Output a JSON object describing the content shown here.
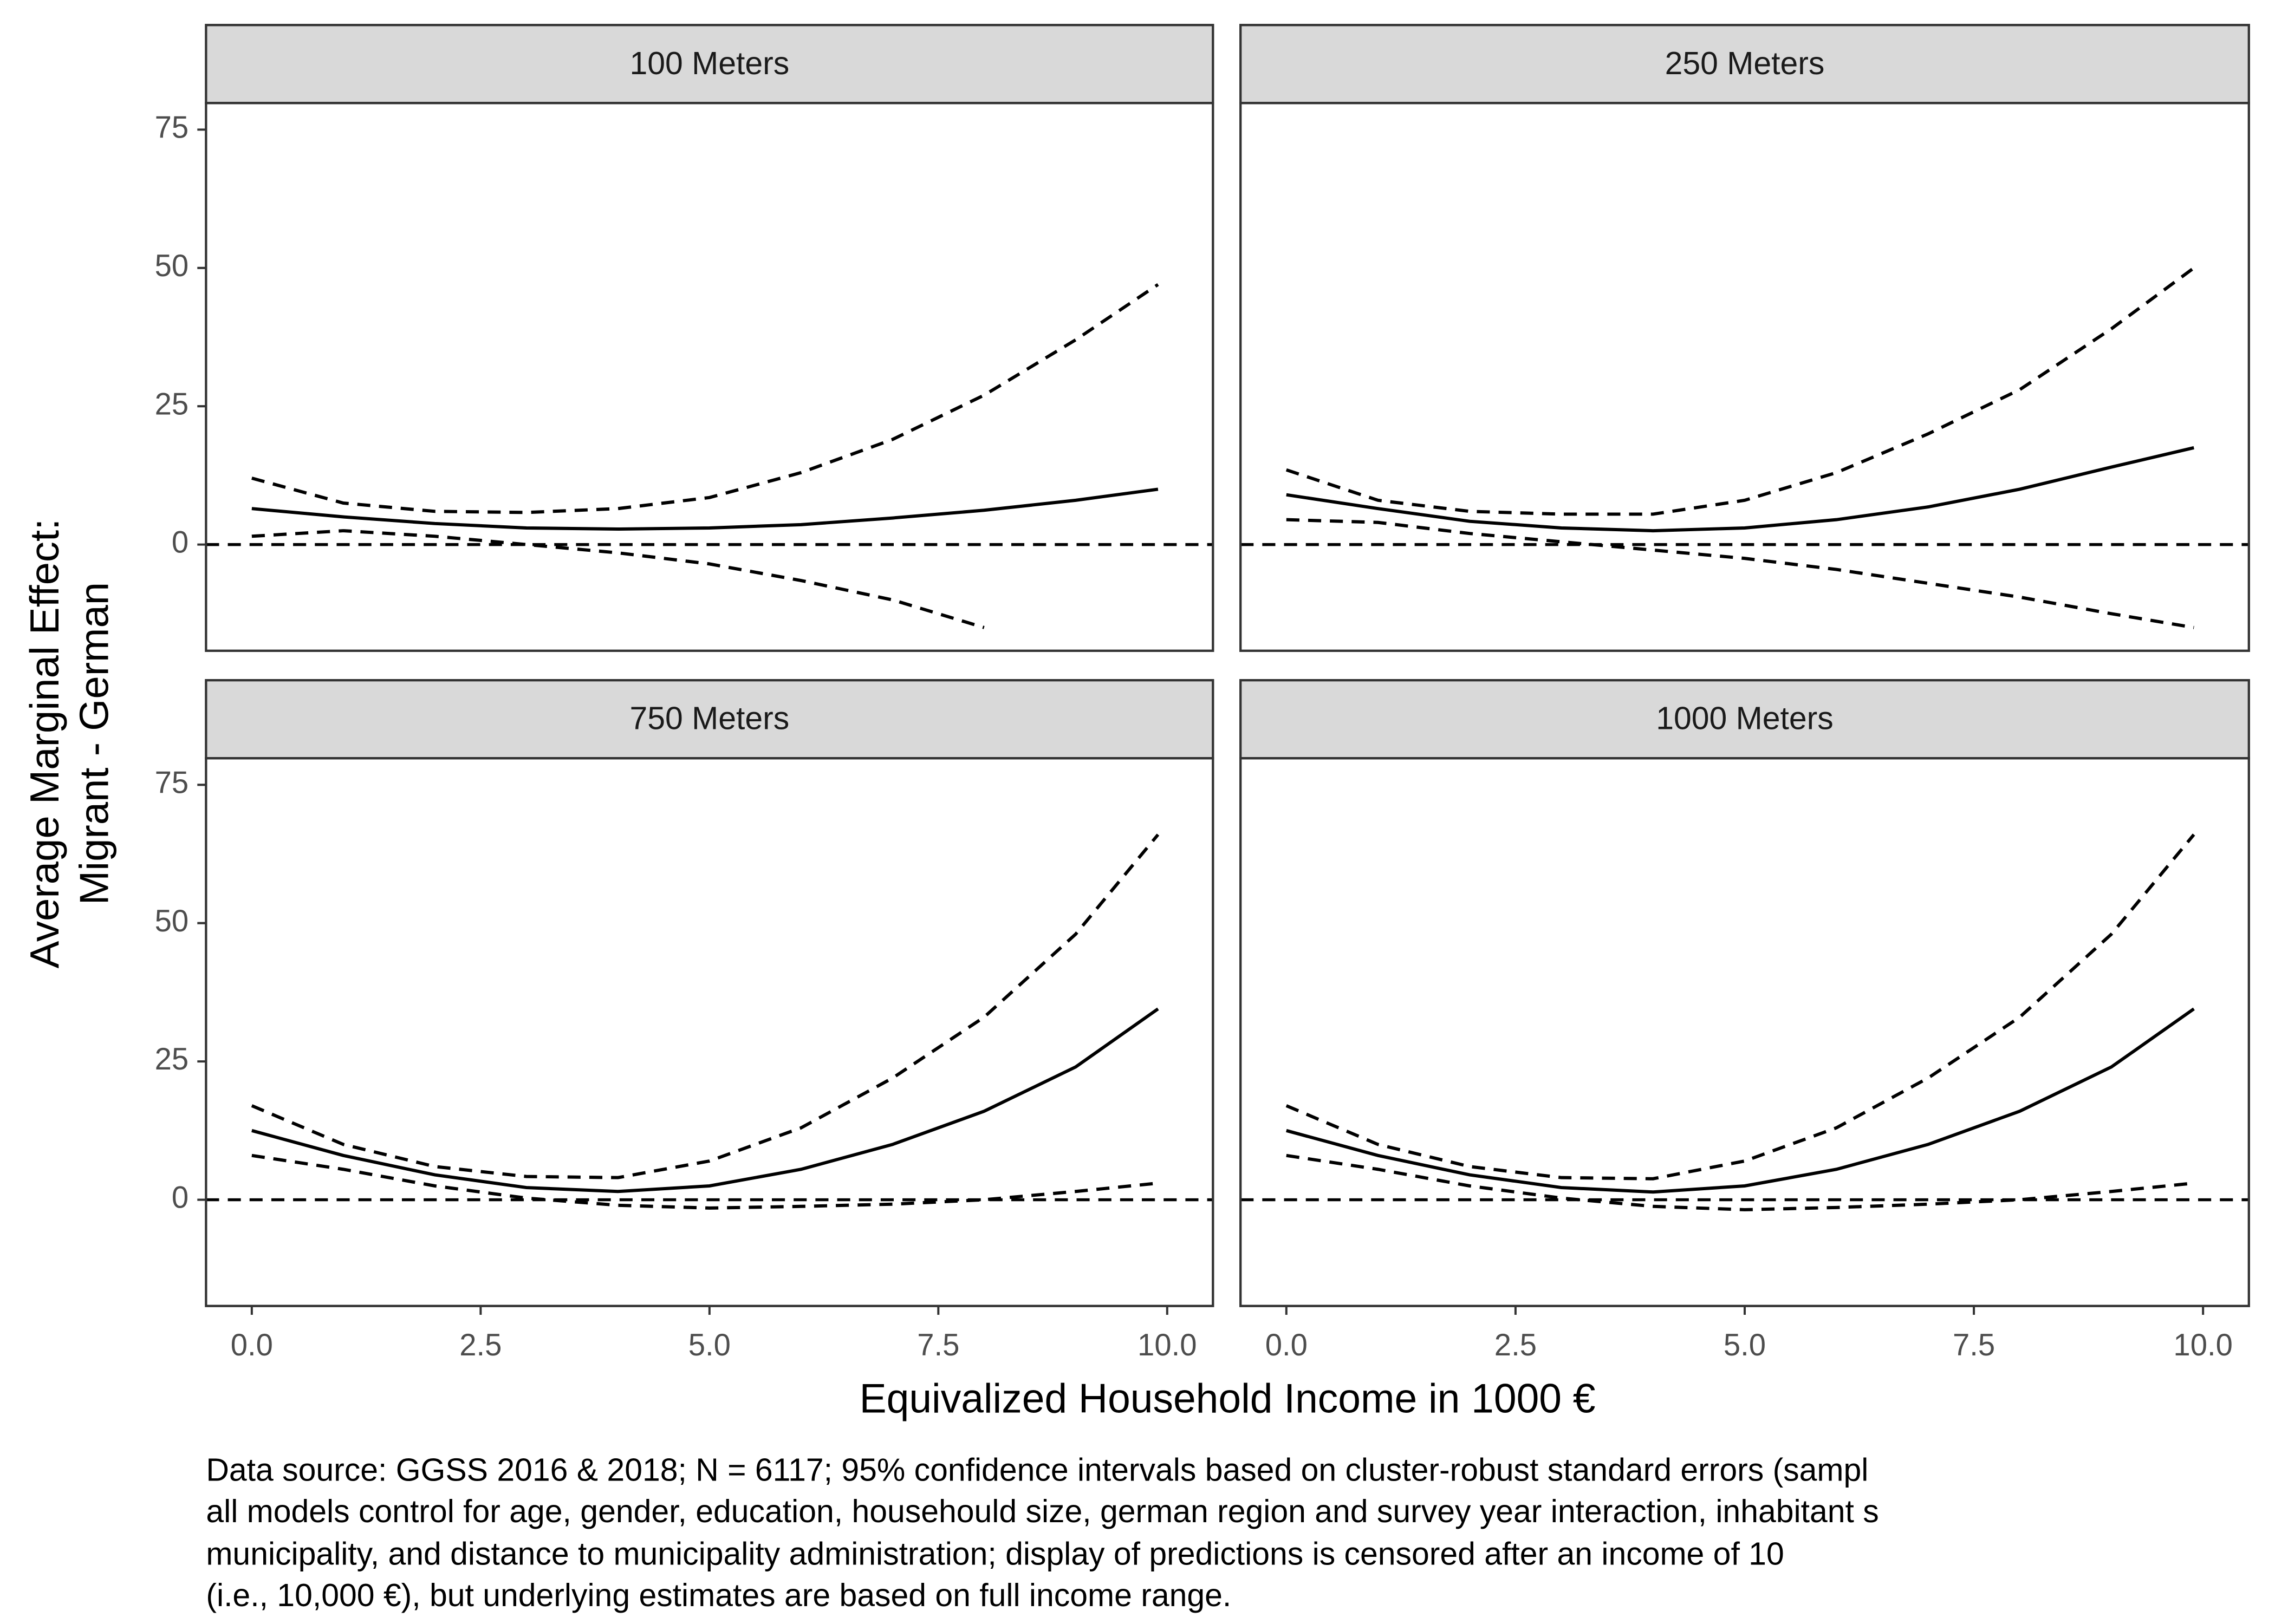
{
  "chart_data": [
    {
      "type": "line",
      "title": "100 Meters",
      "x": [
        0,
        1,
        2,
        3,
        4,
        5,
        6,
        7,
        8,
        9,
        9.9
      ],
      "series": [
        {
          "color": "#000000",
          "dashed": false,
          "values": [
            6.5,
            5,
            3.8,
            3,
            2.8,
            3,
            3.6,
            4.8,
            6.2,
            8,
            10
          ]
        },
        {
          "color": "#000000",
          "dashed": true,
          "values": [
            12,
            7.5,
            6,
            5.8,
            6.5,
            8.5,
            13,
            19,
            27,
            37,
            47
          ]
        },
        {
          "color": "#000000",
          "dashed": true,
          "values": [
            1.5,
            2.5,
            1.5,
            0,
            -1.5,
            -3.5,
            -6.5,
            -10,
            -15,
            null,
            null
          ]
        }
      ],
      "hline": 0,
      "xlim": [
        -0.5,
        10.5
      ],
      "ylim": [
        -19.2,
        79.8
      ],
      "yticks": [
        0,
        25,
        50,
        75
      ],
      "grid": false
    },
    {
      "type": "line",
      "title": "250 Meters",
      "x": [
        0,
        1,
        2,
        3,
        4,
        5,
        6,
        7,
        8,
        9,
        9.9
      ],
      "series": [
        {
          "color": "#000000",
          "dashed": false,
          "values": [
            9,
            6.5,
            4.2,
            3,
            2.5,
            3,
            4.5,
            6.8,
            10,
            14,
            17.5
          ]
        },
        {
          "color": "#000000",
          "dashed": true,
          "values": [
            13.5,
            8,
            6,
            5.5,
            5.5,
            8,
            13,
            20,
            28,
            39,
            50
          ]
        },
        {
          "color": "#000000",
          "dashed": true,
          "values": [
            4.5,
            4,
            2,
            0.5,
            -1,
            -2.5,
            -4.5,
            -7,
            -9.5,
            -12.5,
            -15
          ]
        }
      ],
      "hline": 0,
      "xlim": [
        -0.5,
        10.5
      ],
      "ylim": [
        -19.2,
        79.8
      ],
      "grid": false
    },
    {
      "type": "line",
      "title": "750 Meters",
      "x": [
        0,
        1,
        2,
        3,
        4,
        5,
        6,
        7,
        8,
        9,
        9.9
      ],
      "series": [
        {
          "color": "#000000",
          "dashed": false,
          "values": [
            12.5,
            8,
            4.5,
            2.2,
            1.5,
            2.5,
            5.5,
            10,
            16,
            24,
            34.5
          ]
        },
        {
          "color": "#000000",
          "dashed": true,
          "values": [
            17,
            10,
            6,
            4.2,
            4,
            7,
            13,
            22,
            33,
            48,
            66
          ]
        },
        {
          "color": "#000000",
          "dashed": true,
          "values": [
            8,
            5.5,
            2.5,
            0.3,
            -1,
            -1.5,
            -1.2,
            -0.8,
            0,
            1.5,
            3
          ]
        }
      ],
      "hline": 0,
      "xlim": [
        -0.5,
        10.5
      ],
      "ylim": [
        -19.2,
        79.8
      ],
      "xticks": [
        {
          "value": 0,
          "label": "0.0"
        },
        2.5,
        {
          "value": 5,
          "label": "5.0"
        },
        7.5,
        {
          "value": 10,
          "label": "10.0"
        }
      ],
      "yticks": [
        0,
        25,
        50,
        75
      ],
      "grid": false
    },
    {
      "type": "line",
      "title": "1000 Meters",
      "x": [
        0,
        1,
        2,
        3,
        4,
        5,
        6,
        7,
        8,
        9,
        9.9
      ],
      "series": [
        {
          "color": "#000000",
          "dashed": false,
          "values": [
            12.5,
            8,
            4.5,
            2.2,
            1.4,
            2.5,
            5.5,
            10,
            16,
            24,
            34.5
          ]
        },
        {
          "color": "#000000",
          "dashed": true,
          "values": [
            17,
            10,
            6,
            4,
            3.8,
            7,
            13,
            22,
            33,
            48,
            66
          ]
        },
        {
          "color": "#000000",
          "dashed": true,
          "values": [
            8,
            5.5,
            2.5,
            0.3,
            -1.2,
            -1.8,
            -1.4,
            -0.8,
            0,
            1.5,
            3
          ]
        }
      ],
      "hline": 0,
      "xlim": [
        -0.5,
        10.5
      ],
      "ylim": [
        -19.2,
        79.8
      ],
      "xticks": [
        {
          "value": 0,
          "label": "0.0"
        },
        2.5,
        {
          "value": 5,
          "label": "5.0"
        },
        7.5,
        {
          "value": 10,
          "label": "10.0"
        }
      ],
      "grid": false
    }
  ],
  "xlabel": "Equivalized Household Income in 1000 €",
  "ylabel": [
    "Average Marginal Effect:",
    "Migrant - German"
  ],
  "caption": [
    "Data source: GGSS 2016 & 2018; N = 6117; 95% confidence intervals based on cluster-robust standard errors (sampl",
    "all models control for age, gender, education, househould size, german region and survey year interaction, inhabitant s",
    "municipality, and distance to municipality administration; display of predictions is censored after an income of 10",
    "(i.e., 10,000 €), but underlying estimates are based on full income range."
  ]
}
